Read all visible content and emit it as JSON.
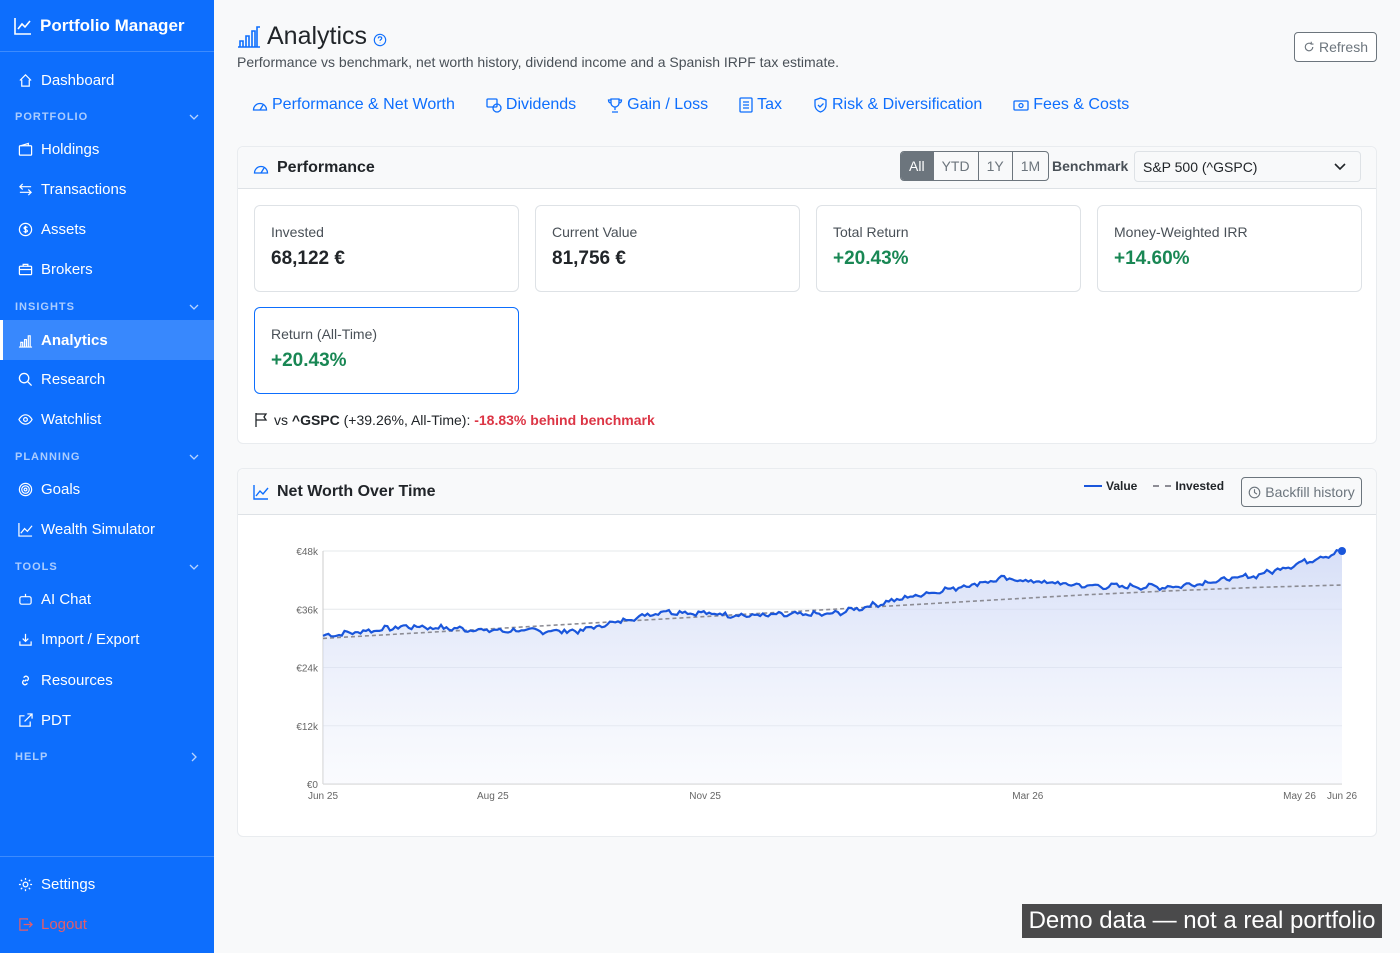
{
  "brand": "Portfolio Manager",
  "nav": {
    "dashboard": "Dashboard",
    "sec_portfolio": "PORTFOLIO",
    "holdings": "Holdings",
    "transactions": "Transactions",
    "assets": "Assets",
    "brokers": "Brokers",
    "sec_insights": "INSIGHTS",
    "analytics": "Analytics",
    "research": "Research",
    "watchlist": "Watchlist",
    "sec_planning": "PLANNING",
    "goals": "Goals",
    "wealth": "Wealth Simulator",
    "sec_tools": "TOOLS",
    "ai_chat": "AI Chat",
    "import_export": "Import / Export",
    "resources": "Resources",
    "pdt": "PDT",
    "sec_help": "HELP",
    "settings": "Settings",
    "logout": "Logout"
  },
  "page": {
    "title": "Analytics",
    "subtitle": "Performance vs benchmark, net worth history, dividend income and a Spanish IRPF tax estimate.",
    "refresh": "Refresh"
  },
  "tabs": [
    "Performance & Net Worth",
    "Dividends",
    "Gain / Loss",
    "Tax",
    "Risk & Diversification",
    "Fees & Costs"
  ],
  "performance": {
    "title": "Performance",
    "periods": [
      "All",
      "YTD",
      "1Y",
      "1M"
    ],
    "selected_period": "All",
    "benchmark_label": "Benchmark",
    "benchmark_value": "S&P 500 (^GSPC)",
    "metrics": {
      "invested_label": "Invested",
      "invested_value": "68,122 €",
      "current_label": "Current Value",
      "current_value": "81,756 €",
      "total_label": "Total Return",
      "total_value": "+20.43%",
      "irr_label": "Money-Weighted IRR",
      "irr_value": "+14.60%",
      "alltime_label": "Return (All-Time)",
      "alltime_value": "+20.43%"
    },
    "bench_prefix": "vs",
    "bench_ticker": "^GSPC",
    "bench_detail": "(+39.26%, All-Time):",
    "bench_diff": "-18.83% behind benchmark"
  },
  "networth": {
    "title": "Net Worth Over Time",
    "backfill": "Backfill history"
  },
  "colors": {
    "accent": "#0d6efd",
    "value_line": "#1a56db",
    "invested_line": "#8c8c94",
    "positive": "#198754",
    "negative": "#dc3545"
  },
  "chart_data": {
    "type": "line",
    "title": "",
    "xlabel": "",
    "ylabel": "",
    "ylim": [
      0,
      48000
    ],
    "yticks": [
      "€0",
      "€12k",
      "€24k",
      "€36k",
      "€48k"
    ],
    "xticks": [
      "Jun 25",
      "Aug 25",
      "Nov 25",
      "Mar 26",
      "May 26",
      "Jun 26"
    ],
    "legend": [
      "Value",
      "Invested"
    ],
    "legend_position": "top-right",
    "grid": true,
    "x": [
      "2025-06",
      "2025-07",
      "2025-08",
      "2025-09",
      "2025-10",
      "2025-11",
      "2025-12",
      "2026-01",
      "2026-02",
      "2026-03",
      "2026-04",
      "2026-05",
      "2026-06"
    ],
    "series": [
      {
        "name": "Value",
        "values": [
          30500,
          32500,
          31600,
          31500,
          35600,
          34700,
          35000,
          38900,
          42300,
          40800,
          40600,
          43000,
          48000
        ]
      },
      {
        "name": "Invested",
        "values": [
          30000,
          31000,
          32000,
          33000,
          34000,
          35000,
          36000,
          37000,
          38000,
          39000,
          39800,
          40500,
          41000
        ]
      }
    ]
  },
  "demo_banner": "Demo data — not a real portfolio"
}
